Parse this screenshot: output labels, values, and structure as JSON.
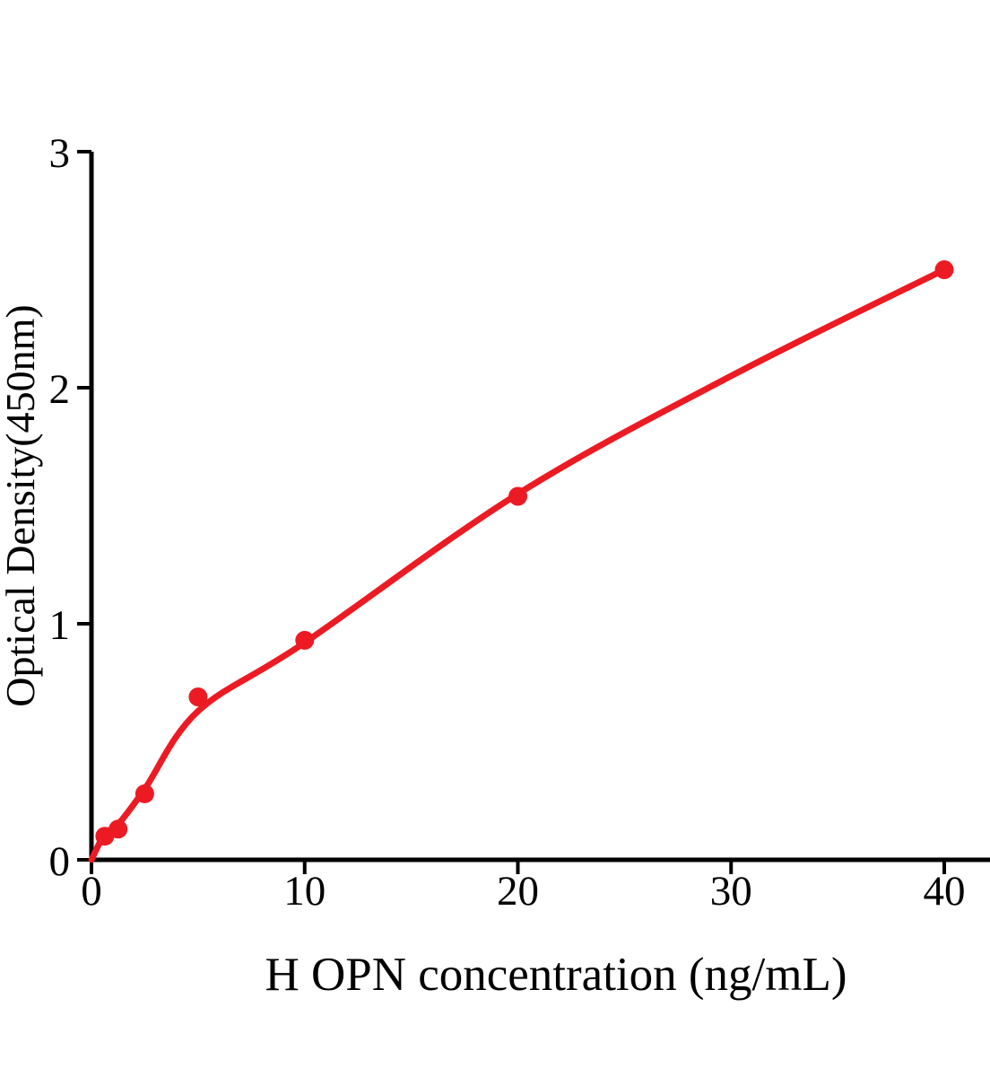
{
  "figure": {
    "kind": "ELISA standard curve plot",
    "background_color": "#ffffff"
  },
  "chart_data": {
    "type": "scatter",
    "title": "",
    "xlabel": "H OPN concentration (ng/mL)",
    "ylabel": "Optical Density(450nm)",
    "xlim": [
      0,
      42.2
    ],
    "ylim": [
      0,
      3
    ],
    "grid": false,
    "legend_position": "none",
    "x_tick_labels": [
      "0",
      "10",
      "20",
      "30",
      "40"
    ],
    "x_tick_values": [
      0,
      10,
      20,
      30,
      40
    ],
    "y_tick_labels": [
      "0",
      "1",
      "2",
      "3"
    ],
    "y_tick_values": [
      0,
      1,
      2,
      3
    ],
    "series": [
      {
        "name": "standard-data-points",
        "type": "scatter",
        "marker": "filled-circle",
        "color": "#ec1b23",
        "x": [
          0.625,
          1.25,
          2.5,
          5,
          10,
          20,
          40
        ],
        "y": [
          0.1,
          0.13,
          0.28,
          0.69,
          0.93,
          1.54,
          2.5
        ]
      },
      {
        "name": "fitted-curve",
        "type": "line",
        "color": "#ec1b23",
        "x": [
          0,
          0.625,
          1.25,
          2.5,
          5,
          10,
          20,
          30,
          40
        ],
        "y": [
          0,
          0.11,
          0.15,
          0.3,
          0.63,
          0.92,
          1.55,
          2.05,
          2.5
        ]
      }
    ],
    "colors": {
      "curve": "#ec1b23",
      "points": "#ec1b23",
      "axis": "#000000",
      "text": "#000000",
      "background": "#ffffff"
    }
  }
}
